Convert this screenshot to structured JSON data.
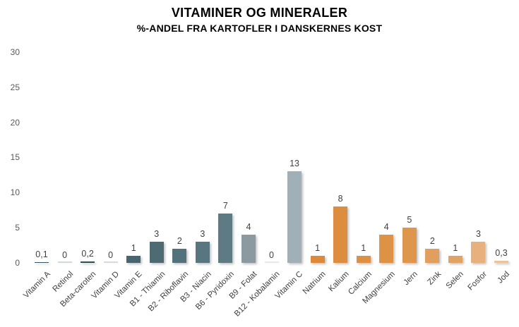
{
  "chart_data": {
    "type": "bar",
    "title": "VITAMINER OG MINERALER",
    "subtitle": "%-ANDEL FRA KARTOFLER I DANSKERNES KOST",
    "categories": [
      "Vitamin A",
      "Retinol",
      "Beta-caroten",
      "Vitamin D",
      "Vitamin E",
      "B1 - Thiamin",
      "B2 - Riboflavin",
      "B3 - Niacin",
      "B6 - Pyridoxin",
      "B9 - Folat",
      "B12 - Kobalamin",
      "Vitamin C",
      "Natrium",
      "Kalium",
      "Calcium",
      "Magnesium",
      "Jern",
      "Zink",
      "Selen",
      "Fosfor",
      "Jod"
    ],
    "values": [
      0.1,
      0,
      0.2,
      0,
      1,
      3,
      2,
      3,
      7,
      4,
      0,
      13,
      1,
      8,
      1,
      4,
      5,
      2,
      1,
      3,
      0.3
    ],
    "value_labels": [
      "0,1",
      "0",
      "0,2",
      "0",
      "1",
      "3",
      "2",
      "3",
      "7",
      "4",
      "0",
      "13",
      "1",
      "8",
      "1",
      "4",
      "5",
      "2",
      "1",
      "3",
      "0,3"
    ],
    "bar_colors": [
      "#33545f",
      "#395962",
      "#2e4e58",
      "#43616b",
      "#48646e",
      "#4e6b74",
      "#53717a",
      "#587680",
      "#5e7a82",
      "#8b9aa1",
      "#96a5ab",
      "#a1b0b6",
      "#dc8938",
      "#dd8d3f",
      "#dd9044",
      "#dd9246",
      "#de954c",
      "#e19e5e",
      "#e1a266",
      "#e7b07c",
      "#eec397"
    ],
    "y_ticks": [
      0,
      5,
      10,
      15,
      20,
      25,
      30
    ],
    "ylim": [
      0,
      30
    ],
    "grid": false,
    "legend": "none",
    "axis_text_color": "#595959",
    "label_text_color": "#3f3f3f",
    "background_color": "#ffffff"
  }
}
